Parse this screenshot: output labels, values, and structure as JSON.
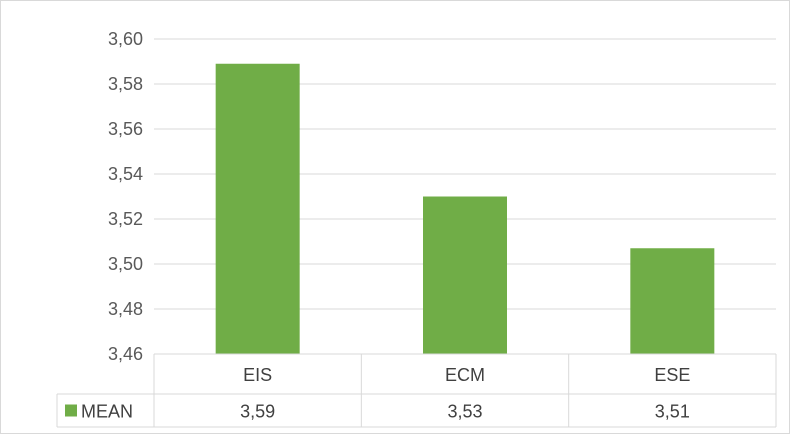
{
  "chart_data": {
    "type": "bar",
    "categories": [
      "EIS",
      "ECM",
      "ESE"
    ],
    "series": [
      {
        "name": "MEAN",
        "values": [
          3.589,
          3.53,
          3.507
        ],
        "color": "#70ad47"
      }
    ],
    "table_values": [
      "3,59",
      "3,53",
      "3,51"
    ],
    "yticks": [
      "3,46",
      "3,48",
      "3,50",
      "3,52",
      "3,54",
      "3,56",
      "3,58",
      "3,60"
    ],
    "ylim": [
      3.46,
      3.6
    ],
    "grid": true,
    "legend_in_table": true,
    "title": "",
    "xlabel": "",
    "ylabel": ""
  }
}
